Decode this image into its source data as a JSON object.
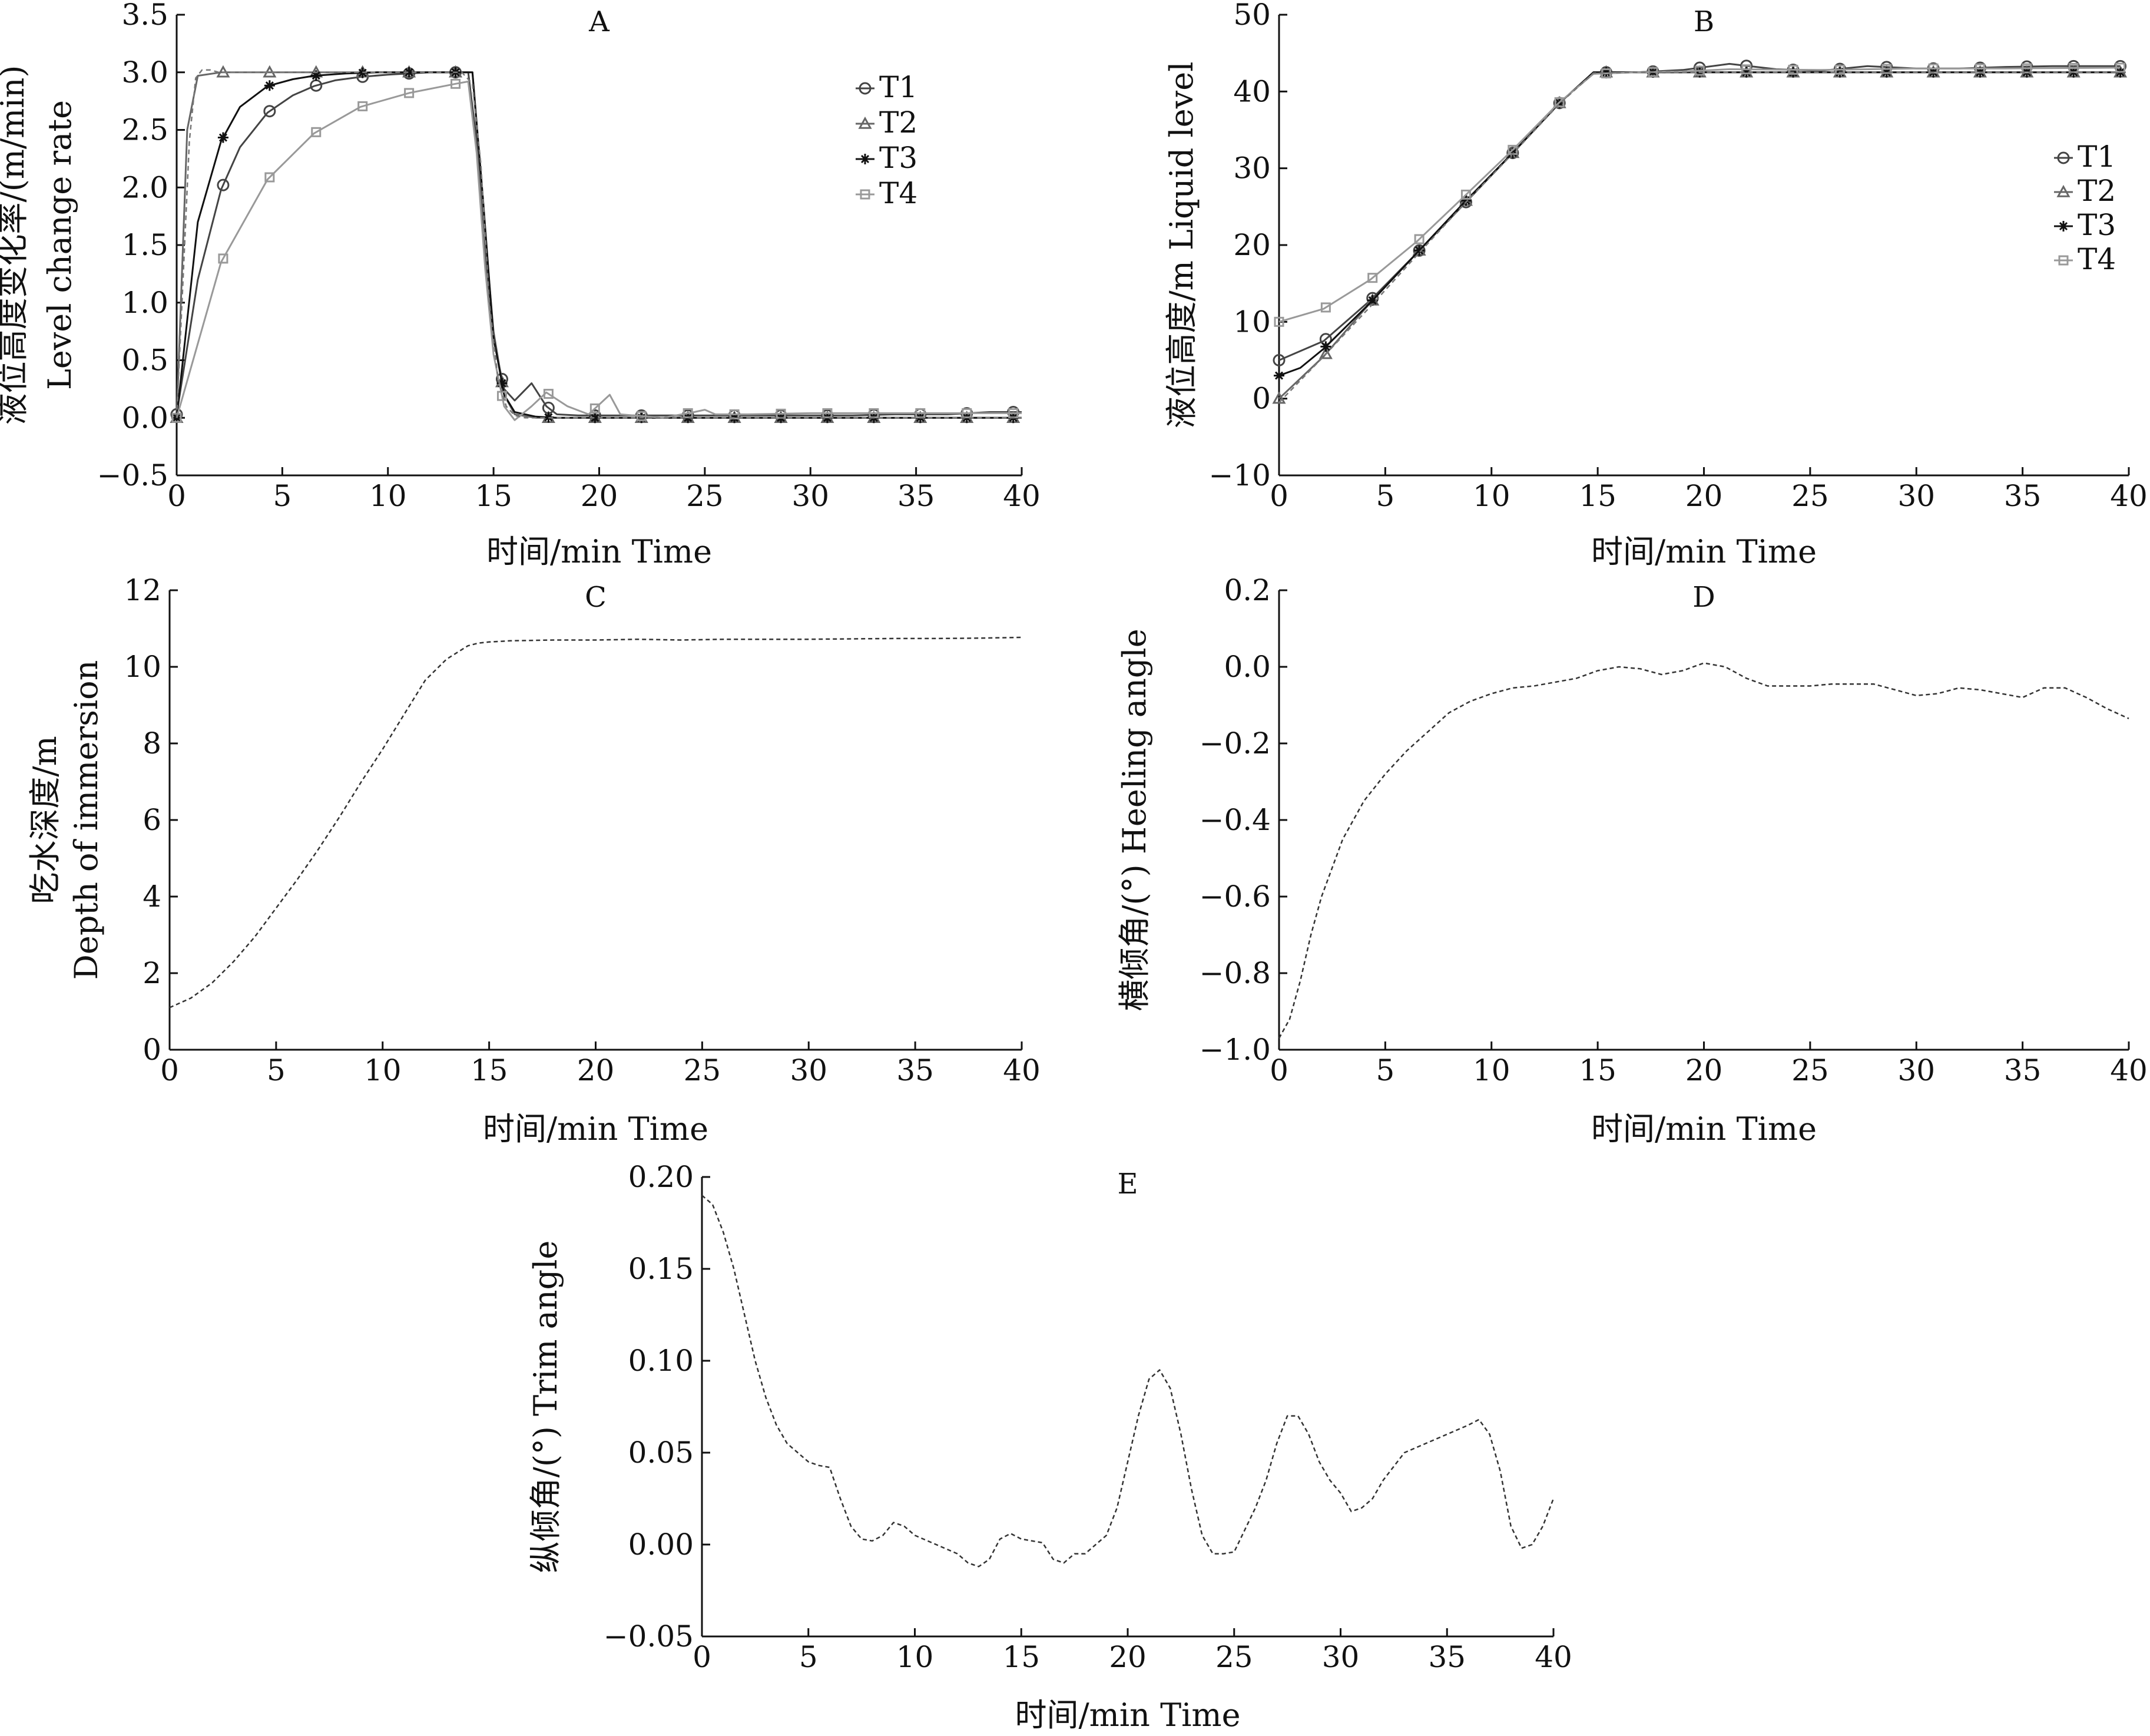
{
  "chart_data": [
    {
      "panel": "A",
      "type": "line",
      "title": "A",
      "xlabel": "时间/min Time",
      "ylabel": [
        "液位高度变化率/(m/min)",
        "Level change rate"
      ],
      "xlim": [
        0,
        40
      ],
      "ylim": [
        -0.5,
        3.5
      ],
      "xticks": [
        "0",
        "5",
        "10",
        "15",
        "20",
        "25",
        "30",
        "35",
        "40"
      ],
      "yticks": [
        "−0.5",
        "0.0",
        "0.5",
        "1.0",
        "1.5",
        "2.0",
        "2.5",
        "3.0",
        "3.5"
      ],
      "legend_position": "top-right",
      "series": [
        {
          "name": "T1",
          "marker": "circle",
          "color": "#444444",
          "dash": "",
          "x": [
            0,
            1,
            2.1,
            3,
            4.3,
            5.5,
            6.5,
            7.5,
            8.7,
            10,
            11,
            12,
            13.2,
            13.8,
            14.2,
            14.5,
            15,
            15.5,
            16,
            16.8,
            17.5,
            18,
            19,
            20,
            21.2,
            23,
            25,
            27,
            30,
            32,
            34,
            36.5,
            38.5,
            40
          ],
          "y": [
            0.03,
            1.2,
            1.98,
            2.35,
            2.65,
            2.8,
            2.88,
            2.93,
            2.96,
            2.98,
            2.99,
            3.0,
            3.0,
            3.0,
            2.4,
            1.6,
            0.68,
            0.25,
            0.15,
            0.3,
            0.1,
            0.03,
            0.02,
            0.02,
            0.02,
            0.02,
            0.02,
            0.02,
            0.02,
            0.02,
            0.03,
            0.03,
            0.05,
            0.05
          ]
        },
        {
          "name": "T2",
          "marker": "triangle",
          "color": "#666666",
          "dash": "",
          "x": [
            0,
            0.5,
            1,
            2.1,
            4.3,
            6.5,
            8.7,
            11,
            13.2,
            14,
            14.5,
            15,
            15.5,
            16,
            17,
            19,
            21,
            25,
            30,
            35,
            40
          ],
          "y": [
            0.0,
            2.5,
            2.97,
            3.0,
            3.0,
            3.0,
            3.0,
            3.0,
            3.0,
            3.0,
            1.8,
            0.75,
            0.2,
            0.03,
            0.0,
            0.0,
            0.0,
            0.0,
            0.0,
            0.0,
            0.0
          ]
        },
        {
          "name": "T3",
          "marker": "asterisk",
          "color": "#111111",
          "dash": "",
          "x": [
            0,
            1,
            2.1,
            3,
            4.3,
            5.5,
            6.5,
            8,
            9.5,
            11,
            13.2,
            14,
            14.5,
            15,
            15.5,
            16,
            17,
            18,
            19,
            21,
            25,
            30,
            35,
            40
          ],
          "y": [
            0.0,
            1.7,
            2.4,
            2.7,
            2.88,
            2.94,
            2.97,
            2.99,
            3.0,
            3.0,
            3.0,
            3.0,
            1.9,
            0.7,
            0.2,
            0.05,
            0.01,
            0.0,
            0.0,
            0.0,
            0.0,
            0.0,
            0.0,
            0.0
          ]
        },
        {
          "name": "T4",
          "marker": "square",
          "color": "#999999",
          "dash": "",
          "x": [
            0,
            2.1,
            4.3,
            6.5,
            8.7,
            11,
            13.2,
            13.8,
            14.2,
            14.6,
            15,
            15.5,
            16,
            16.8,
            17.5,
            18.5,
            19.5,
            20.5,
            21,
            23,
            24.5,
            25,
            25.5,
            27,
            30,
            32,
            34,
            36.5,
            38.5,
            40
          ],
          "y": [
            0.0,
            1.35,
            2.07,
            2.47,
            2.7,
            2.82,
            2.9,
            2.92,
            2.3,
            1.3,
            0.55,
            0.1,
            -0.02,
            0.1,
            0.22,
            0.1,
            0.03,
            0.2,
            0.03,
            0.0,
            0.05,
            0.07,
            0.03,
            0.03,
            0.04,
            0.04,
            0.04,
            0.04,
            0.04,
            0.04
          ]
        },
        {
          "name": "",
          "marker": "none",
          "color": "#777777",
          "dash": "8,6",
          "x": [
            0,
            0.3,
            0.6,
            0.9,
            1.2,
            1.6,
            2,
            13.5,
            14,
            14.4,
            14.8,
            15.2,
            15.6,
            16,
            16.5,
            17,
            18,
            20,
            25,
            30,
            35,
            40
          ],
          "y": [
            0.0,
            1.2,
            2.4,
            2.95,
            3.02,
            3.02,
            3.0,
            3.0,
            2.9,
            2.2,
            1.0,
            0.35,
            0.1,
            0.02,
            0.0,
            0.0,
            0.0,
            0.0,
            0.0,
            0.0,
            0.0,
            0.0
          ]
        }
      ]
    },
    {
      "panel": "B",
      "type": "line",
      "title": "B",
      "xlabel": "时间/min Time",
      "ylabel": [
        "液位高度/m  Liquid level"
      ],
      "xlim": [
        0,
        40
      ],
      "ylim": [
        -10,
        50
      ],
      "xticks": [
        "0",
        "5",
        "10",
        "15",
        "20",
        "25",
        "30",
        "35",
        "40"
      ],
      "yticks": [
        "−10",
        "0",
        "10",
        "20",
        "30",
        "40",
        "50"
      ],
      "legend_position": "right",
      "series": [
        {
          "name": "T1",
          "marker": "circle",
          "color": "#444444",
          "dash": "",
          "x": [
            0,
            2.1,
            4.3,
            6.5,
            8.7,
            11,
            13.2,
            14.8,
            16.8,
            19,
            21.2,
            23.4,
            25.5,
            27.7,
            30,
            32,
            34.2,
            36.4,
            39.6
          ],
          "y": [
            5,
            7.5,
            12.8,
            19,
            25.3,
            32,
            38.5,
            42.5,
            42.5,
            42.8,
            43.6,
            42.9,
            42.7,
            43.3,
            43.0,
            43.0,
            43.2,
            43.3,
            43.3
          ]
        },
        {
          "name": "T2",
          "marker": "triangle",
          "color": "#666666",
          "dash": "",
          "x": [
            0,
            2.1,
            4.3,
            6.5,
            8.7,
            11,
            13.2,
            14.8,
            16.8,
            19,
            21.2,
            25.5,
            30,
            34.2,
            39.6
          ],
          "y": [
            0,
            5.5,
            12.5,
            19,
            25.5,
            32,
            38.5,
            42.5,
            42.5,
            42.5,
            42.5,
            42.5,
            42.5,
            42.5,
            42.5
          ]
        },
        {
          "name": "T3",
          "marker": "asterisk",
          "color": "#111111",
          "dash": "",
          "x": [
            0,
            1,
            2.1,
            4.3,
            6.5,
            8.7,
            11,
            13.2,
            14.8,
            16.8,
            21.2,
            25.5,
            30,
            34.2,
            39.6
          ],
          "y": [
            3,
            4,
            6.5,
            12.5,
            19,
            25.5,
            32,
            38.5,
            42.5,
            42.5,
            42.5,
            42.5,
            42.5,
            42.5,
            42.5
          ]
        },
        {
          "name": "T4",
          "marker": "square",
          "color": "#999999",
          "dash": "",
          "x": [
            0,
            2.1,
            4.3,
            6.5,
            8.7,
            11,
            13.2,
            14.8,
            16.8,
            19,
            21.2,
            25.5,
            30,
            34.2,
            39.6
          ],
          "y": [
            10,
            11.7,
            15.5,
            20.5,
            26.3,
            32.4,
            38.6,
            42.3,
            42.5,
            42.6,
            42.9,
            42.8,
            43.0,
            43.0,
            43.1
          ]
        },
        {
          "name": "",
          "marker": "none",
          "color": "#777777",
          "dash": "8,6",
          "x": [
            0,
            2.1,
            4.3,
            6.5,
            8.7,
            11,
            13.2,
            14.8,
            16.8,
            21.2,
            25.5,
            30,
            34.2,
            39.6
          ],
          "y": [
            -0.5,
            5.5,
            12,
            18.7,
            25.3,
            31.9,
            38.4,
            42.4,
            42.5,
            42.5,
            42.5,
            42.5,
            42.5,
            42.5
          ]
        }
      ]
    },
    {
      "panel": "C",
      "type": "line",
      "title": "C",
      "xlabel": "时间/min Time",
      "ylabel": [
        "吃水深度/m",
        "Depth of immersion"
      ],
      "xlim": [
        0,
        40
      ],
      "ylim": [
        0,
        12
      ],
      "xticks": [
        "0",
        "5",
        "10",
        "15",
        "20",
        "25",
        "30",
        "35",
        "40"
      ],
      "yticks": [
        "0",
        "2",
        "4",
        "6",
        "8",
        "10",
        "12"
      ],
      "series": [
        {
          "name": "",
          "marker": "none",
          "color": "#333333",
          "dash": "7,5",
          "x": [
            0,
            1,
            2,
            3,
            4,
            5,
            6,
            7,
            8,
            9,
            10,
            11,
            12,
            13,
            14,
            14.5,
            15,
            16,
            18,
            20,
            22,
            24,
            26,
            28,
            30,
            32,
            34,
            36,
            38,
            40
          ],
          "y": [
            1.1,
            1.35,
            1.75,
            2.3,
            2.95,
            3.7,
            4.45,
            5.25,
            6.1,
            7.0,
            7.85,
            8.75,
            9.65,
            10.2,
            10.55,
            10.62,
            10.65,
            10.68,
            10.7,
            10.7,
            10.72,
            10.7,
            10.72,
            10.72,
            10.72,
            10.73,
            10.74,
            10.74,
            10.75,
            10.77
          ]
        }
      ]
    },
    {
      "panel": "D",
      "type": "line",
      "title": "D",
      "xlabel": "时间/min Time",
      "ylabel": [
        "横倾角/(°)  Heeling angle"
      ],
      "xlim": [
        0,
        40
      ],
      "ylim": [
        -1.0,
        0.2
      ],
      "xticks": [
        "0",
        "5",
        "10",
        "15",
        "20",
        "25",
        "30",
        "35",
        "40"
      ],
      "yticks": [
        "−1.0",
        "−0.8",
        "−0.6",
        "−0.4",
        "−0.2",
        "0.0",
        "0.2"
      ],
      "series": [
        {
          "name": "",
          "marker": "none",
          "color": "#333333",
          "dash": "7,5",
          "x": [
            0,
            0.5,
            1,
            1.5,
            2,
            3,
            4,
            5,
            6,
            7,
            8,
            9,
            10,
            11,
            12,
            13,
            14,
            15,
            16,
            17,
            18,
            19,
            20,
            21,
            22,
            23,
            24,
            25,
            26,
            27,
            28,
            29,
            30,
            31,
            32,
            33,
            34,
            35,
            36,
            37,
            38,
            39,
            40
          ],
          "y": [
            -0.97,
            -0.92,
            -0.82,
            -0.7,
            -0.6,
            -0.45,
            -0.35,
            -0.28,
            -0.22,
            -0.17,
            -0.12,
            -0.09,
            -0.07,
            -0.055,
            -0.05,
            -0.04,
            -0.03,
            -0.01,
            0.0,
            -0.005,
            -0.02,
            -0.01,
            0.01,
            0.0,
            -0.03,
            -0.05,
            -0.05,
            -0.05,
            -0.045,
            -0.045,
            -0.045,
            -0.06,
            -0.075,
            -0.07,
            -0.055,
            -0.06,
            -0.07,
            -0.08,
            -0.055,
            -0.055,
            -0.08,
            -0.11,
            -0.135
          ]
        }
      ]
    },
    {
      "panel": "E",
      "type": "line",
      "title": "E",
      "xlabel": "时间/min Time",
      "ylabel": [
        "纵倾角/(°)  Trim angle"
      ],
      "xlim": [
        0,
        40
      ],
      "ylim": [
        -0.05,
        0.2
      ],
      "xticks": [
        "0",
        "5",
        "10",
        "15",
        "20",
        "25",
        "30",
        "35",
        "40"
      ],
      "yticks": [
        "−0.05",
        "0.00",
        "0.05",
        "0.10",
        "0.15",
        "0.20"
      ],
      "series": [
        {
          "name": "",
          "marker": "none",
          "color": "#333333",
          "dash": "7,5",
          "x": [
            0,
            0.5,
            1,
            1.5,
            2,
            2.5,
            3,
            3.5,
            4,
            5,
            5.5,
            6,
            6.5,
            7,
            7.5,
            8,
            8.5,
            9,
            9.5,
            10,
            11,
            12,
            12.5,
            13,
            13.5,
            14,
            14.5,
            15,
            16,
            16.5,
            17,
            17.5,
            18,
            19,
            19.5,
            20,
            20.5,
            21,
            21.5,
            22,
            22.5,
            23,
            23.5,
            24,
            24.5,
            25,
            26,
            26.5,
            27,
            27.5,
            28,
            28.5,
            29,
            29.5,
            30,
            30.5,
            31,
            31.5,
            32,
            33,
            34,
            35,
            36,
            36.5,
            37,
            37.5,
            38,
            38.5,
            39,
            39.5,
            40
          ],
          "y": [
            0.19,
            0.185,
            0.17,
            0.15,
            0.125,
            0.1,
            0.08,
            0.065,
            0.055,
            0.045,
            0.043,
            0.042,
            0.025,
            0.01,
            0.003,
            0.002,
            0.005,
            0.012,
            0.01,
            0.005,
            0.0,
            -0.005,
            -0.01,
            -0.012,
            -0.008,
            0.003,
            0.006,
            0.003,
            0.001,
            -0.008,
            -0.01,
            -0.005,
            -0.005,
            0.005,
            0.02,
            0.045,
            0.07,
            0.09,
            0.095,
            0.085,
            0.06,
            0.03,
            0.005,
            -0.005,
            -0.005,
            -0.004,
            0.02,
            0.035,
            0.055,
            0.07,
            0.07,
            0.06,
            0.045,
            0.035,
            0.028,
            0.018,
            0.02,
            0.025,
            0.035,
            0.05,
            0.055,
            0.06,
            0.065,
            0.068,
            0.06,
            0.04,
            0.01,
            -0.002,
            0.0,
            0.01,
            0.025
          ]
        }
      ]
    }
  ]
}
